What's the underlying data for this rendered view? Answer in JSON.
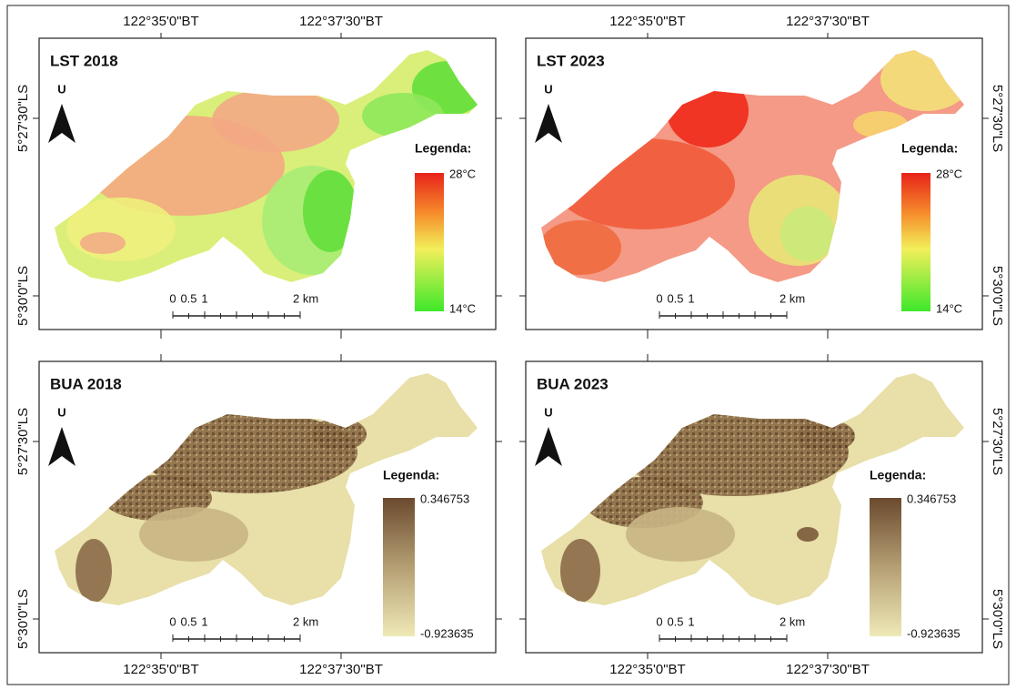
{
  "panels": [
    {
      "title": "LST 2018",
      "north": "U",
      "legend_title": "Legenda:",
      "legend_max": "28°C",
      "legend_min": "14°C",
      "scale_labels": [
        "0",
        "0.5",
        "1",
        "2 km"
      ]
    },
    {
      "title": "LST 2023",
      "north": "U",
      "legend_title": "Legenda:",
      "legend_max": "28°C",
      "legend_min": "14°C",
      "scale_labels": [
        "0",
        "0.5",
        "1",
        "2 km"
      ]
    },
    {
      "title": "BUA 2018",
      "north": "U",
      "legend_title": "Legenda:",
      "legend_max": "0.346753",
      "legend_min": "-0.923635",
      "scale_labels": [
        "0",
        "0.5",
        "1",
        "2 km"
      ]
    },
    {
      "title": "BUA 2023",
      "north": "U",
      "legend_title": "Legenda:",
      "legend_max": "0.346753",
      "legend_min": "-0.923635",
      "scale_labels": [
        "0",
        "0.5",
        "1",
        "2 km"
      ]
    }
  ],
  "graticule": {
    "top": [
      "122°35'0\"BT",
      "122°37'30\"BT",
      "122°35'0\"BT",
      "122°37'30\"BT"
    ],
    "bottom": [
      "122°35'0\"BT",
      "122°37'30\"BT",
      "122°35'0\"BT",
      "122°37'30\"BT"
    ],
    "left": [
      "5°27'30\"LS",
      "5°30'0\"LS",
      "5°27'30\"LS",
      "5°30'0\"LS"
    ],
    "right": [
      "5°27'30\"LS",
      "5°30'0\"LS",
      "5°27'30\"LS",
      "5°30'0\"LS"
    ]
  }
}
